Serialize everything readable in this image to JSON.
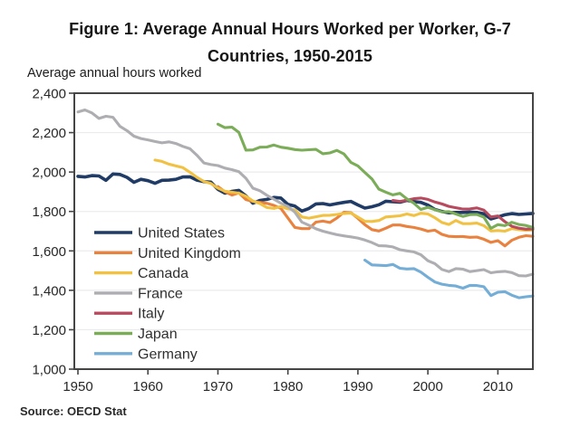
{
  "figure": {
    "title_line1": "Figure 1: Average Annual Hours Worked per Worker, G-7",
    "title_line2": "Countries, 1950-2015",
    "unit_label": "Average annual hours worked",
    "source": "Source: OECD Stat"
  },
  "chart_data": {
    "type": "line",
    "title": "Figure 1: Average Annual Hours Worked per Worker, G-7 Countries, 1950-2015",
    "xlabel": "",
    "ylabel": "Average annual hours worked",
    "xlim": [
      1949.5,
      2015
    ],
    "ylim": [
      1000,
      2400
    ],
    "grid": "faint horizontal gridlines every 200 hours",
    "legend_position": "inside-left",
    "x_ticks": [
      {
        "value": 1950,
        "label": "1950"
      },
      {
        "value": 1960,
        "label": "1960"
      },
      {
        "value": 1970,
        "label": "1970"
      },
      {
        "value": 1980,
        "label": "1980"
      },
      {
        "value": 1990,
        "label": "1990"
      },
      {
        "value": 2000,
        "label": "2000"
      },
      {
        "value": 2010,
        "label": "2010"
      }
    ],
    "y_ticks": [
      {
        "value": 2400,
        "label": "2,400"
      },
      {
        "value": 2200,
        "label": "2,200"
      },
      {
        "value": 2000,
        "label": "2,000"
      },
      {
        "value": 1800,
        "label": "1,800"
      },
      {
        "value": 1600,
        "label": "1,600"
      },
      {
        "value": 1400,
        "label": "1,400"
      },
      {
        "value": 1200,
        "label": "1,200"
      },
      {
        "value": 1000,
        "label": "1,000"
      }
    ],
    "series": [
      {
        "name": "United States",
        "color": "#1f3b66",
        "start_year": 1950,
        "values": [
          1978,
          1975,
          1982,
          1980,
          1958,
          1990,
          1988,
          1973,
          1948,
          1963,
          1956,
          1943,
          1958,
          1959,
          1963,
          1975,
          1976,
          1959,
          1951,
          1949,
          1912,
          1893,
          1902,
          1907,
          1879,
          1842,
          1856,
          1861,
          1871,
          1868,
          1836,
          1827,
          1802,
          1815,
          1838,
          1840,
          1833,
          1840,
          1846,
          1851,
          1833,
          1817,
          1824,
          1834,
          1852,
          1849,
          1847,
          1856,
          1850,
          1846,
          1832,
          1810,
          1800,
          1793,
          1795,
          1795,
          1797,
          1795,
          1788,
          1762,
          1772,
          1783,
          1789,
          1785,
          1787,
          1790
        ]
      },
      {
        "name": "United Kingdom",
        "color": "#e8823e",
        "start_year": 1970,
        "values": [
          1926,
          1900,
          1883,
          1894,
          1860,
          1851,
          1846,
          1841,
          1831,
          1815,
          1767,
          1719,
          1713,
          1713,
          1746,
          1751,
          1744,
          1767,
          1796,
          1794,
          1765,
          1733,
          1708,
          1701,
          1715,
          1731,
          1731,
          1724,
          1719,
          1711,
          1700,
          1705,
          1684,
          1674,
          1672,
          1673,
          1669,
          1670,
          1659,
          1643,
          1652,
          1625,
          1654,
          1669,
          1677,
          1674
        ]
      },
      {
        "name": "Canada",
        "color": "#f0c143",
        "start_year": 1961,
        "values": [
          2061,
          2054,
          2040,
          2031,
          2022,
          1999,
          1973,
          1952,
          1942,
          1918,
          1903,
          1898,
          1893,
          1877,
          1853,
          1840,
          1820,
          1815,
          1825,
          1813,
          1808,
          1772,
          1766,
          1773,
          1780,
          1781,
          1785,
          1790,
          1792,
          1771,
          1750,
          1749,
          1754,
          1772,
          1775,
          1778,
          1787,
          1779,
          1791,
          1787,
          1768,
          1744,
          1734,
          1754,
          1738,
          1738,
          1741,
          1728,
          1701,
          1703,
          1700,
          1713,
          1708,
          1704,
          1706
        ]
      },
      {
        "name": "France",
        "color": "#aeadb1",
        "start_year": 1950,
        "values": [
          2305,
          2315,
          2300,
          2272,
          2283,
          2278,
          2232,
          2210,
          2182,
          2170,
          2163,
          2155,
          2148,
          2153,
          2145,
          2130,
          2118,
          2085,
          2046,
          2038,
          2033,
          2020,
          2012,
          2002,
          1968,
          1918,
          1905,
          1882,
          1862,
          1842,
          1826,
          1796,
          1746,
          1730,
          1712,
          1700,
          1691,
          1682,
          1676,
          1671,
          1665,
          1655,
          1642,
          1626,
          1625,
          1620,
          1606,
          1600,
          1595,
          1580,
          1550,
          1535,
          1506,
          1495,
          1510,
          1507,
          1495,
          1500,
          1505,
          1489,
          1494,
          1496,
          1490,
          1474,
          1473,
          1482
        ]
      },
      {
        "name": "Italy",
        "color": "#b84a5e",
        "start_year": 1995,
        "values": [
          1856,
          1851,
          1857,
          1865,
          1868,
          1861,
          1848,
          1838,
          1826,
          1819,
          1812,
          1813,
          1818,
          1807,
          1772,
          1777,
          1748,
          1725,
          1715,
          1710,
          1712
        ]
      },
      {
        "name": "Japan",
        "color": "#7bad58",
        "start_year": 1970,
        "values": [
          2243,
          2225,
          2228,
          2201,
          2111,
          2112,
          2126,
          2127,
          2137,
          2126,
          2121,
          2114,
          2111,
          2113,
          2115,
          2093,
          2097,
          2110,
          2092,
          2049,
          2031,
          1998,
          1965,
          1913,
          1898,
          1884,
          1892,
          1864,
          1842,
          1810,
          1821,
          1809,
          1798,
          1799,
          1787,
          1775,
          1784,
          1785,
          1771,
          1714,
          1733,
          1728,
          1745,
          1734,
          1729,
          1719
        ]
      },
      {
        "name": "Germany",
        "color": "#74add6",
        "start_year": 1991,
        "values": [
          1553,
          1529,
          1527,
          1525,
          1531,
          1512,
          1508,
          1510,
          1492,
          1466,
          1442,
          1431,
          1425,
          1422,
          1411,
          1425,
          1424,
          1418,
          1373,
          1390,
          1393,
          1375,
          1362,
          1367,
          1371
        ]
      }
    ],
    "style": {
      "axis_color": "#454545",
      "grid_color": "#ebebee",
      "plot_bg": "#ffffff",
      "line_width": 3.1,
      "us_line_width": 3.6
    }
  }
}
